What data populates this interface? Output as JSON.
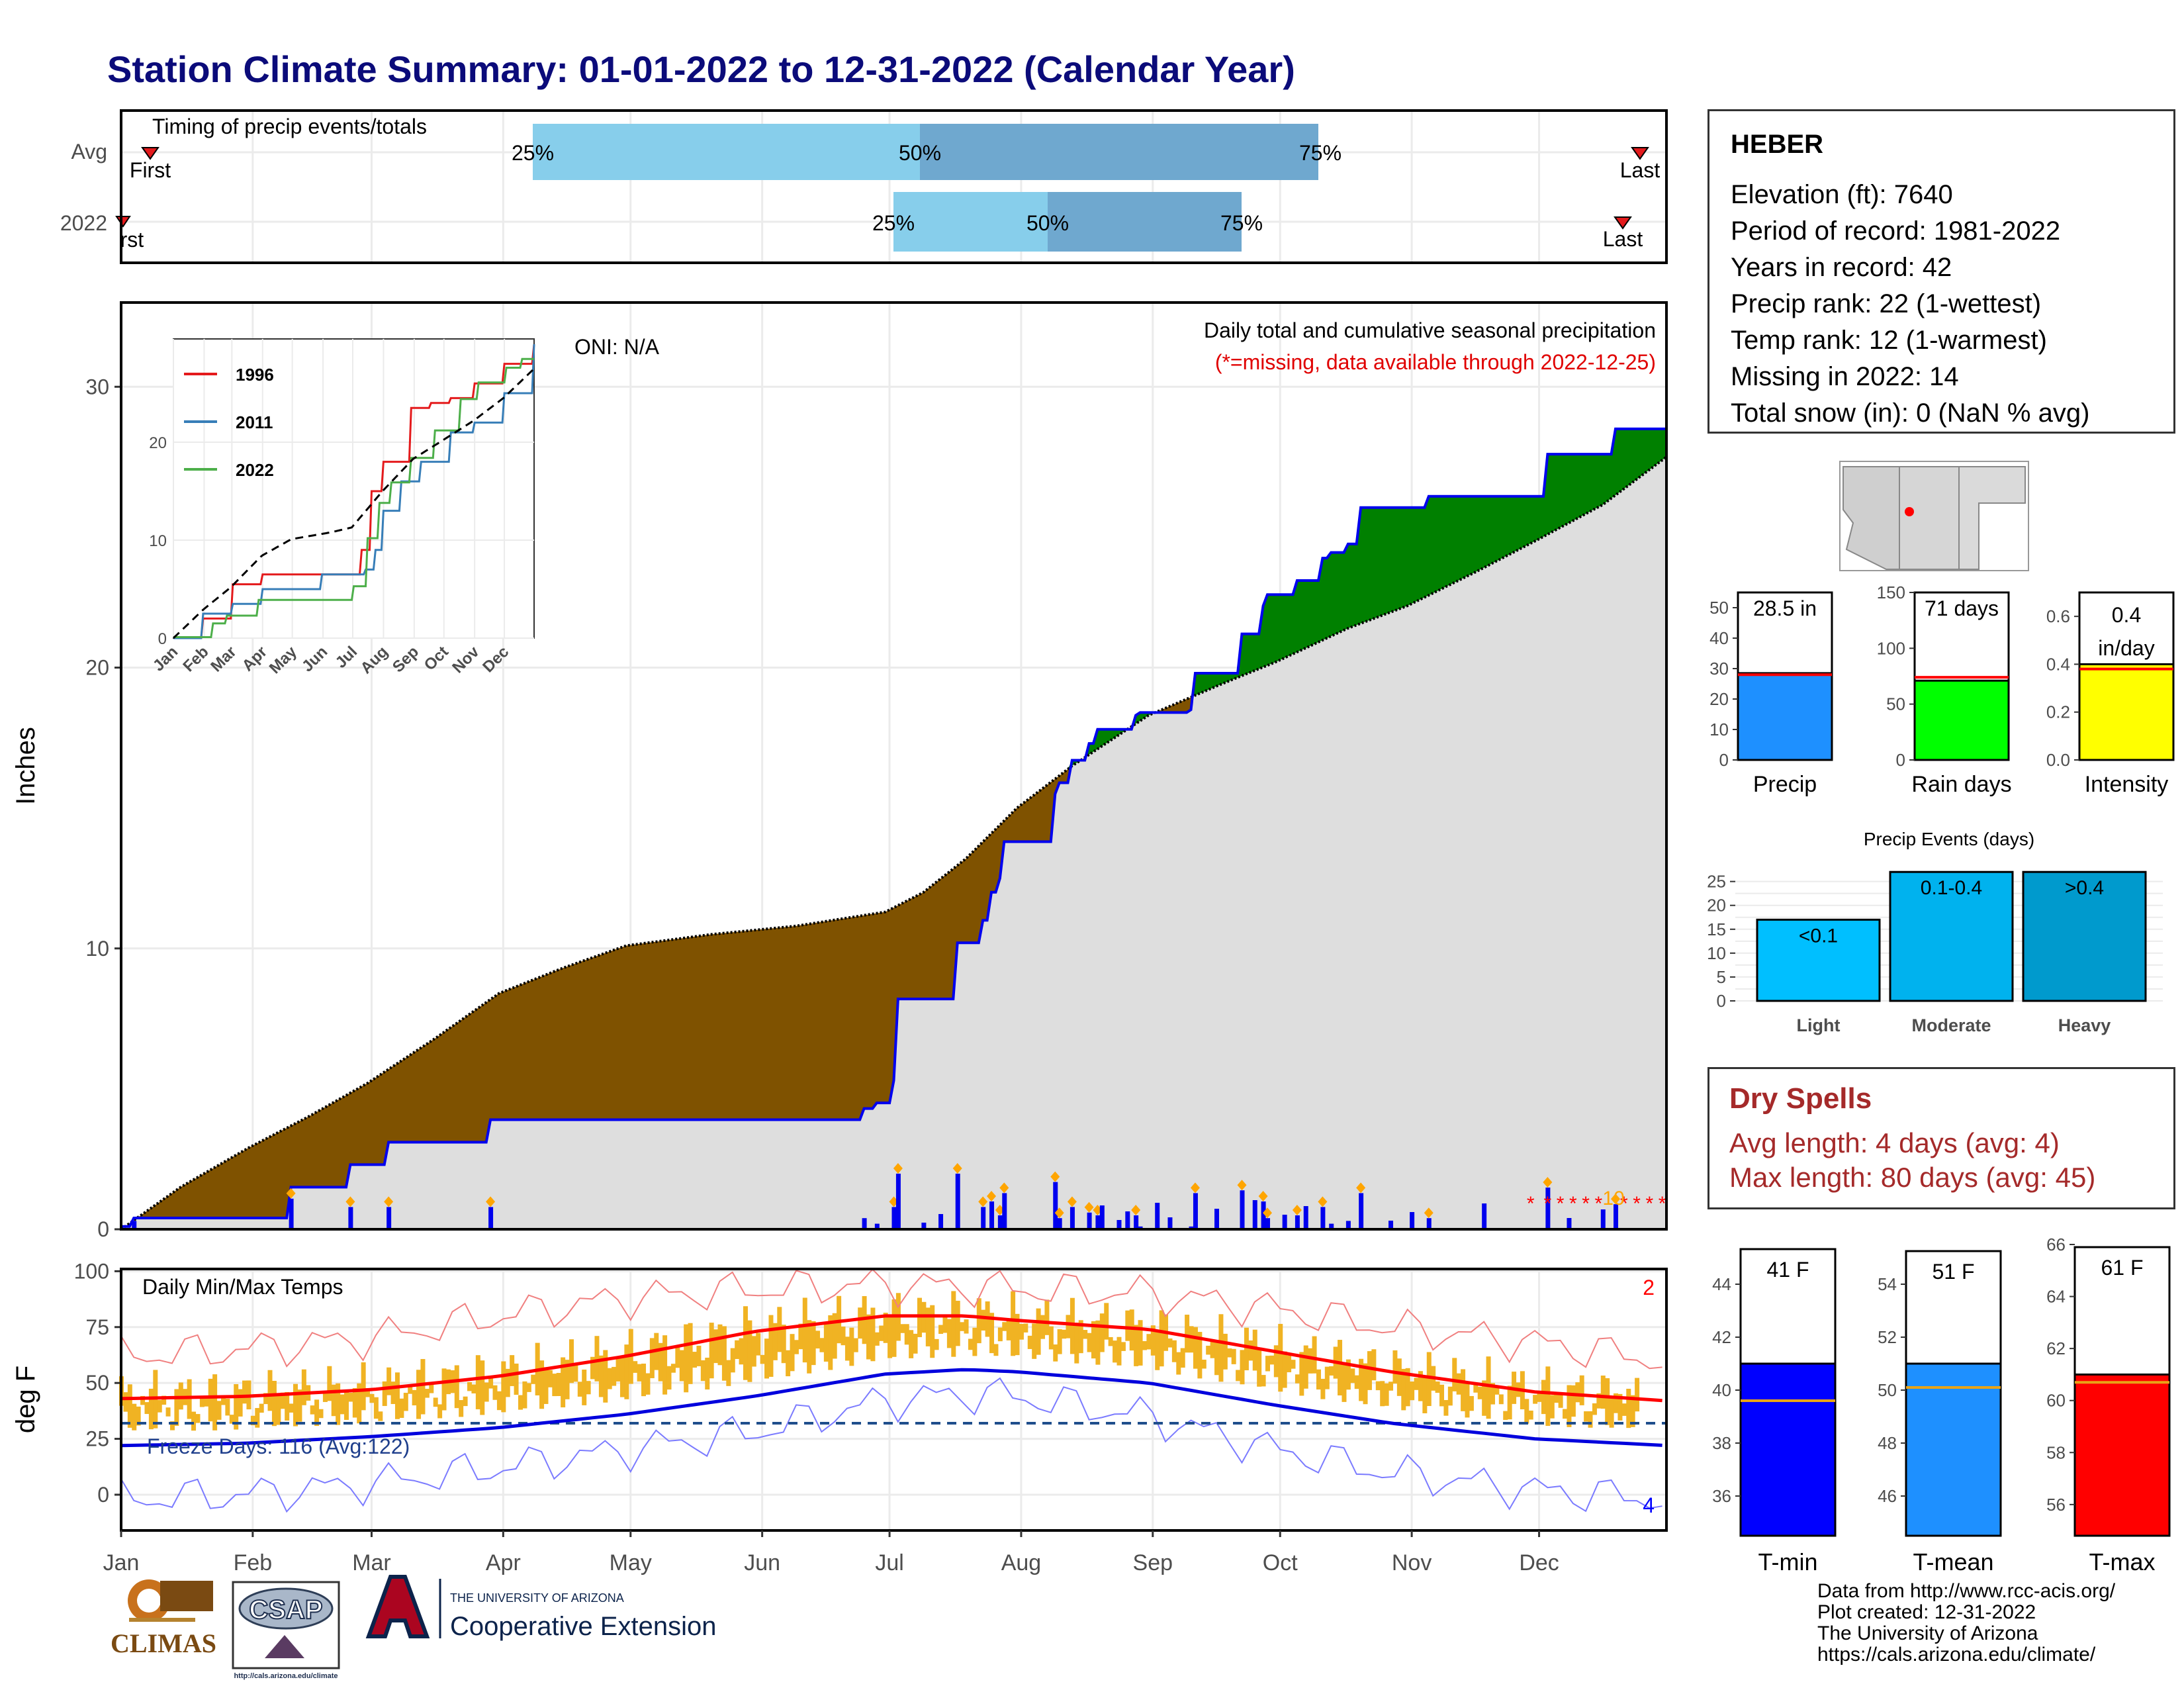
{
  "title": "Station Climate Summary: 01-01-2022 to 12-31-2022 (Calendar Year)",
  "timing_panel": {
    "label": "Timing of precip events/totals",
    "rows": [
      "Avg",
      "2022"
    ],
    "avg": {
      "p25": "25%",
      "p50": "50%",
      "p75": "75%",
      "first": "First",
      "last": "Last"
    },
    "y2022": {
      "p25": "25%",
      "p50": "50%",
      "p75": "75%",
      "first": "First",
      "last": "Last"
    }
  },
  "precip_panel": {
    "ylabel": "Inches",
    "yticks": [
      "0",
      "10",
      "20",
      "30"
    ],
    "caption": "Daily total and cumulative seasonal precipitation",
    "missing_note": "(*=missing, data available through 2022-12-25)",
    "oni": "ONI: N/A",
    "missing_count": "10",
    "inset": {
      "legend": [
        "1996",
        "2011",
        "2022"
      ],
      "yticks": [
        "0",
        "10",
        "20"
      ],
      "xticks": [
        "Jan",
        "Feb",
        "Mar",
        "Apr",
        "May",
        "Jun",
        "Jul",
        "Aug",
        "Sep",
        "Oct",
        "Nov",
        "Dec"
      ]
    }
  },
  "temp_panel": {
    "label": "Daily Min/Max Temps",
    "ylabel": "deg F",
    "yticks": [
      "0",
      "25",
      "50",
      "75",
      "100"
    ],
    "freeze": "Freeze Days: 116 (Avg:122)",
    "count_hi": "2",
    "count_lo": "4"
  },
  "months": [
    "Jan",
    "Feb",
    "Mar",
    "Apr",
    "May",
    "Jun",
    "Jul",
    "Aug",
    "Sep",
    "Oct",
    "Nov",
    "Dec"
  ],
  "station": {
    "name": "HEBER",
    "lines": [
      "Elevation (ft): 7640",
      "Period of record: 1981-2022",
      "Years in record: 42",
      "Precip rank: 22 (1-wettest)",
      "Temp rank: 12 (1-warmest)",
      "Missing in 2022: 14",
      "Total snow (in): 0 (NaN % avg)"
    ]
  },
  "summary_bars": {
    "precip": {
      "label": "Precip",
      "value_text": "28.5 in",
      "yticks": [
        "0",
        "10",
        "20",
        "30",
        "40",
        "50"
      ],
      "color": "#1e90ff"
    },
    "raindays": {
      "label": "Rain days",
      "value_text": "71 days",
      "yticks": [
        "0",
        "50",
        "100",
        "150"
      ],
      "color": "#00ff00"
    },
    "intensity": {
      "label": "Intensity",
      "value_text1": "0.4",
      "value_text2": "in/day",
      "yticks": [
        "0.0",
        "0.2",
        "0.4",
        "0.6"
      ],
      "color": "#ffff00"
    }
  },
  "events": {
    "title": "Precip Events (days)",
    "yticks": [
      "0",
      "5",
      "10",
      "15",
      "20",
      "25"
    ],
    "bars": [
      {
        "name": "Light",
        "text": "<0.1",
        "value": 17,
        "color": "#00bfff"
      },
      {
        "name": "Moderate",
        "text": "0.1-0.4",
        "value": 27,
        "color": "#00b2ee"
      },
      {
        "name": "Heavy",
        "text": ">0.4",
        "value": 27,
        "color": "#009acd"
      }
    ]
  },
  "dry_spells": {
    "title": "Dry Spells",
    "avg": "Avg length: 4 days (avg: 4)",
    "max": "Max length: 80 days (avg: 45)"
  },
  "temp_bars": {
    "tmin": {
      "label": "T-min",
      "value_text": "41 F",
      "yticks": [
        "36",
        "38",
        "40",
        "42",
        "44"
      ],
      "color": "#0000ff"
    },
    "tmean": {
      "label": "T-mean",
      "value_text": "51 F",
      "yticks": [
        "46",
        "48",
        "50",
        "52",
        "54"
      ],
      "color": "#1e90ff"
    },
    "tmax": {
      "label": "T-max",
      "value_text": "61 F",
      "yticks": [
        "56",
        "58",
        "60",
        "62",
        "64",
        "66"
      ],
      "color": "#ff0000"
    }
  },
  "footer": {
    "lines": [
      "Data from http://www.rcc-acis.org/",
      "Plot created: 12-31-2022",
      "The University of Arizona",
      "https://cals.arizona.edu/climate/"
    ]
  },
  "logos": {
    "climas": "CLIMAS",
    "csap": "CSAP",
    "csap_url": "http://cals.arizona.edu/climate",
    "ua_small": "THE UNIVERSITY OF ARIZONA",
    "coop": "Cooperative Extension"
  },
  "chart_data": [
    {
      "type": "area",
      "title": "Daily total and cumulative seasonal precipitation",
      "ylabel": "Inches",
      "ylim": [
        0,
        31
      ],
      "x_units": "day of year",
      "series": [
        {
          "name": "average cumulative",
          "x": [
            1,
            15,
            31,
            45,
            59,
            75,
            90,
            105,
            120,
            140,
            160,
            181,
            190,
            200,
            212,
            225,
            243,
            260,
            273,
            290,
            304,
            320,
            334,
            350,
            365
          ],
          "y": [
            0,
            1.5,
            2.9,
            4.0,
            5.2,
            6.8,
            8.4,
            9.3,
            10.1,
            10.5,
            10.8,
            11.3,
            12.0,
            13.2,
            15.0,
            16.5,
            18.3,
            19.4,
            20.2,
            21.4,
            22.2,
            23.4,
            24.5,
            25.8,
            27.5
          ]
        },
        {
          "name": "2022 cumulative",
          "x": [
            1,
            4,
            40,
            41,
            54,
            55,
            63,
            64,
            87,
            88,
            168,
            176,
            179,
            183,
            184,
            197,
            198,
            204,
            206,
            208,
            209,
            216,
            221,
            222,
            225,
            229,
            231,
            240,
            241,
            253,
            254,
            264,
            265,
            270,
            271,
            278,
            284,
            286,
            290,
            293,
            308,
            309,
            336,
            337,
            352,
            353,
            365
          ],
          "y": [
            0.1,
            0.4,
            0.4,
            1.5,
            1.5,
            2.3,
            2.3,
            3.1,
            3.1,
            3.9,
            3.9,
            4.3,
            4.5,
            5.3,
            8.2,
            8.2,
            10.2,
            11.0,
            12.0,
            12.5,
            13.8,
            13.8,
            15.5,
            15.9,
            16.7,
            17.3,
            17.8,
            18.3,
            18.4,
            18.5,
            19.8,
            19.8,
            21.2,
            22.2,
            22.6,
            23.1,
            23.9,
            24.1,
            24.4,
            25.7,
            25.7,
            26.1,
            26.1,
            27.6,
            27.6,
            28.5,
            28.5
          ]
        }
      ],
      "daily_bars_note": "daily precipitation totals drawn along the baseline"
    },
    {
      "type": "line",
      "title": "",
      "xticks": [
        "Jan",
        "Feb",
        "Mar",
        "Apr",
        "May",
        "Jun",
        "Jul",
        "Aug",
        "Sep",
        "Oct",
        "Nov",
        "Dec"
      ],
      "ylim": [
        0,
        30
      ],
      "series": [
        {
          "name": "1996",
          "x": [
            1,
            30,
            60,
            90,
            150,
            181,
            190,
            200,
            212,
            240,
            260,
            280,
            305,
            335,
            365
          ],
          "y": [
            0,
            2,
            5.5,
            6.5,
            6.5,
            6.5,
            9,
            15,
            18,
            23.5,
            24,
            24.5,
            26,
            28,
            30
          ]
        },
        {
          "name": "2011",
          "x": [
            1,
            30,
            60,
            90,
            150,
            181,
            195,
            205,
            212,
            230,
            250,
            280,
            305,
            335,
            365
          ],
          "y": [
            0,
            2.5,
            3.5,
            5,
            6.5,
            6.5,
            7,
            9,
            13,
            16,
            18,
            21,
            22,
            25,
            30
          ]
        },
        {
          "name": "2022",
          "x": [
            1,
            40,
            55,
            87,
            168,
            183,
            197,
            209,
            221,
            241,
            265,
            290,
            309,
            337,
            353,
            365
          ],
          "y": [
            0.1,
            1.5,
            2.3,
            3.9,
            3.9,
            5.3,
            10.2,
            13.8,
            15.9,
            18.4,
            21.2,
            24.4,
            26.1,
            27.6,
            28.5,
            28.5
          ]
        },
        {
          "name": "average",
          "x": [
            1,
            31,
            59,
            90,
            120,
            160,
            181,
            212,
            243,
            273,
            304,
            334,
            365
          ],
          "y": [
            0,
            2.9,
            5.2,
            8.4,
            10.1,
            10.8,
            11.3,
            15.0,
            18.3,
            20.2,
            22.2,
            24.5,
            27.5
          ]
        }
      ]
    },
    {
      "type": "line",
      "title": "Daily Min/Max Temps",
      "ylabel": "deg F",
      "ylim": [
        -10,
        100
      ],
      "freeze_line": 32,
      "series": [
        {
          "name": "normal max",
          "x": [
            1,
            30,
            60,
            90,
            120,
            150,
            181,
            200,
            212,
            243,
            273,
            300,
            334,
            365
          ],
          "y": [
            43,
            44,
            47,
            53,
            62,
            73,
            80,
            80,
            78,
            74,
            64,
            55,
            46,
            42
          ]
        },
        {
          "name": "normal min",
          "x": [
            1,
            30,
            60,
            90,
            120,
            150,
            181,
            200,
            212,
            243,
            273,
            300,
            334,
            365
          ],
          "y": [
            22,
            23,
            26,
            30,
            36,
            44,
            54,
            56,
            55,
            50,
            40,
            32,
            25,
            22
          ]
        },
        {
          "name": "record max",
          "x": [
            1,
            30,
            60,
            90,
            120,
            150,
            181,
            200,
            212,
            243,
            273,
            300,
            334,
            365
          ],
          "y": [
            62,
            65,
            70,
            80,
            88,
            92,
            94,
            93,
            92,
            90,
            83,
            75,
            68,
            60
          ]
        },
        {
          "name": "record min",
          "x": [
            1,
            30,
            60,
            90,
            120,
            150,
            181,
            200,
            212,
            243,
            273,
            300,
            334,
            365
          ],
          "y": [
            -2,
            0,
            5,
            12,
            20,
            28,
            42,
            45,
            44,
            35,
            20,
            10,
            2,
            -2
          ]
        }
      ]
    },
    {
      "type": "bar",
      "title": "",
      "categories": [
        "Precip",
        "Rain days",
        "Intensity"
      ],
      "values": [
        28.5,
        71,
        0.4
      ],
      "averages": [
        28,
        74,
        0.38
      ]
    },
    {
      "type": "bar",
      "title": "Precip Events (days)",
      "categories": [
        "Light",
        "Moderate",
        "Heavy"
      ],
      "values": [
        17,
        27,
        27
      ],
      "ylim": [
        0,
        27
      ]
    },
    {
      "type": "bar",
      "title": "",
      "categories": [
        "T-min",
        "T-mean",
        "T-max"
      ],
      "values": [
        41,
        51,
        61
      ],
      "averages": [
        39.6,
        50.1,
        60.7
      ]
    }
  ]
}
